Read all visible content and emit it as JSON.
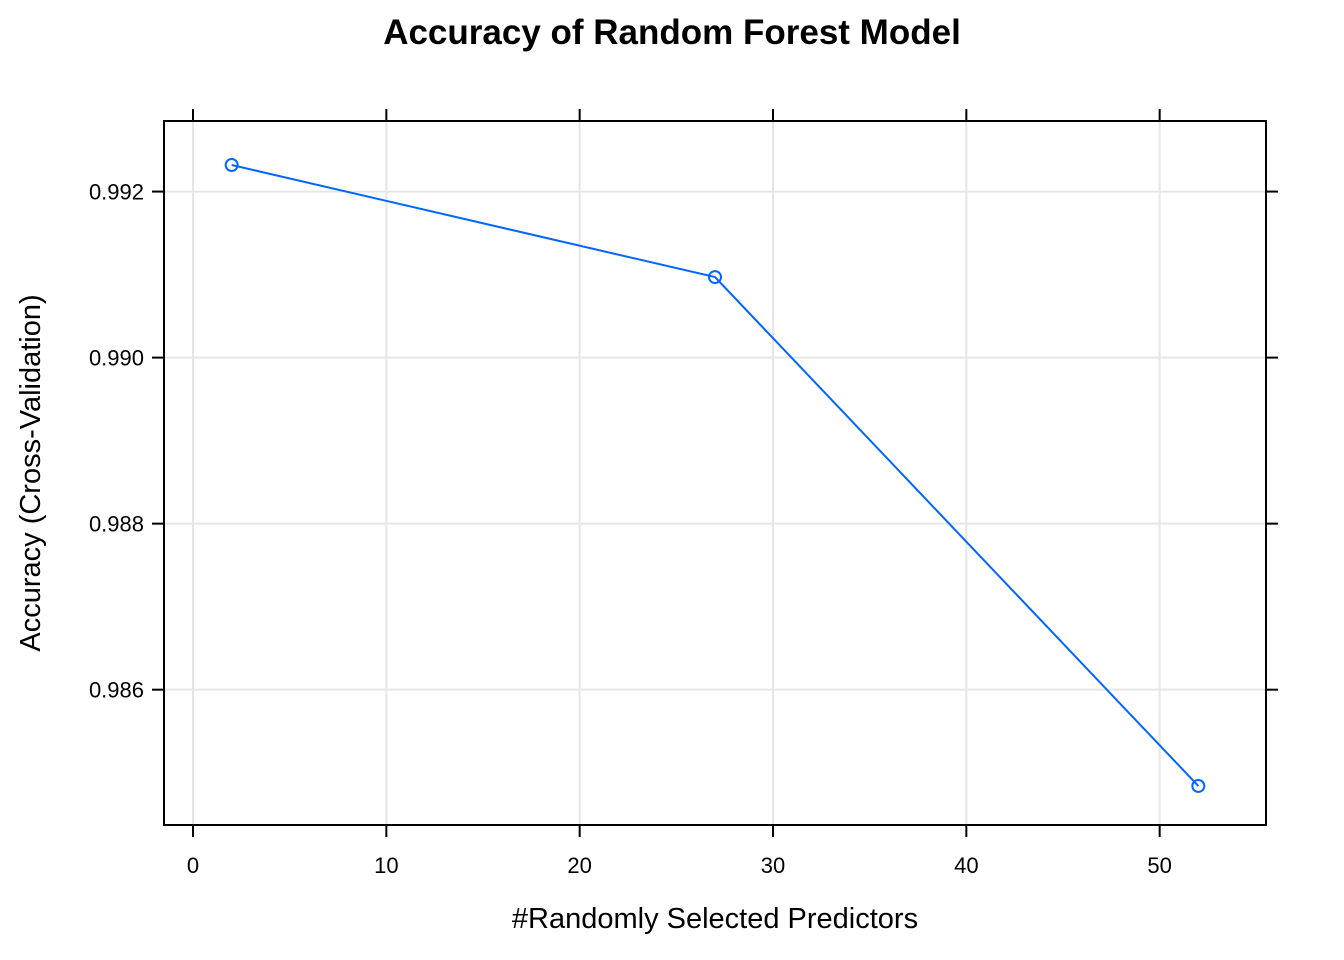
{
  "chart_data": {
    "type": "line",
    "title": "Accuracy of Random Forest Model",
    "xlabel": "#Randomly Selected Predictors",
    "ylabel": "Accuracy (Cross-Validation)",
    "x": [
      2,
      27,
      52
    ],
    "series": [
      {
        "values": [
          0.99232,
          0.99097,
          0.98484
        ],
        "color": "#0066ff",
        "marker": "open-circle"
      }
    ],
    "xlim": [
      -1.5,
      55.5
    ],
    "ylim": [
      0.98437,
      0.99285
    ],
    "xticks": [
      0,
      10,
      20,
      30,
      40,
      50
    ],
    "xtick_labels": [
      "0",
      "10",
      "20",
      "30",
      "40",
      "50"
    ],
    "yticks": [
      0.986,
      0.988,
      0.99,
      0.992
    ],
    "ytick_labels": [
      "0.986",
      "0.988",
      "0.990",
      "0.992"
    ],
    "grid": true,
    "legend": "none"
  }
}
